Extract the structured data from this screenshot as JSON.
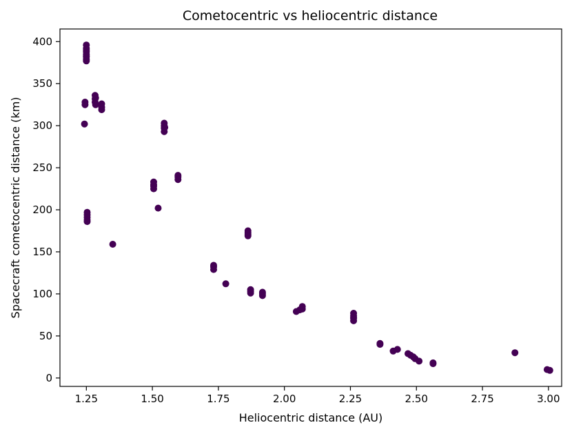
{
  "chart_data": {
    "type": "scatter",
    "title": "Cometocentric vs heliocentric distance",
    "xlabel": "Heliocentric distance (AU)",
    "ylabel": "Spacecraft cometocentric distance (km)",
    "xlim": [
      1.15,
      3.05
    ],
    "ylim": [
      -10,
      415
    ],
    "x_ticks": [
      1.25,
      1.5,
      1.75,
      2.0,
      2.25,
      2.5,
      2.75,
      3.0
    ],
    "x_tick_labels": [
      "1.25",
      "1.50",
      "1.75",
      "2.00",
      "2.25",
      "2.50",
      "2.75",
      "3.00"
    ],
    "y_ticks": [
      0,
      50,
      100,
      150,
      200,
      250,
      300,
      350,
      400
    ],
    "y_tick_labels": [
      "0",
      "50",
      "100",
      "150",
      "200",
      "250",
      "300",
      "350",
      "400"
    ],
    "grid": false,
    "marker_color": "#440154",
    "points": {
      "x": [
        1.25,
        1.25,
        1.25,
        1.25,
        1.25,
        1.25,
        1.25,
        1.25,
        1.25,
        1.245,
        1.245,
        1.243,
        1.283,
        1.283,
        1.283,
        1.285,
        1.285,
        1.308,
        1.308,
        1.308,
        1.253,
        1.253,
        1.253,
        1.253,
        1.253,
        1.35,
        1.505,
        1.505,
        1.505,
        1.505,
        1.522,
        1.545,
        1.545,
        1.545,
        1.545,
        1.547,
        1.597,
        1.597,
        1.597,
        1.732,
        1.732,
        1.732,
        1.778,
        1.862,
        1.862,
        1.862,
        1.862,
        1.872,
        1.872,
        1.872,
        1.917,
        1.917,
        1.917,
        2.045,
        2.058,
        2.068,
        2.068,
        2.262,
        2.262,
        2.262,
        2.262,
        2.262,
        2.362,
        2.362,
        2.412,
        2.428,
        2.468,
        2.478,
        2.488,
        2.495,
        2.51,
        2.563,
        2.563,
        2.873,
        2.995,
        3.005
      ],
      "y": [
        396,
        392,
        388,
        385,
        382,
        379,
        377,
        390,
        383,
        328,
        325,
        302,
        336,
        332,
        328,
        325,
        333,
        326,
        322,
        319,
        197,
        194,
        191,
        188,
        186,
        159,
        233,
        230,
        228,
        225,
        202,
        303,
        300,
        297,
        293,
        298,
        241,
        239,
        236,
        134,
        132,
        129,
        112,
        175,
        173,
        171,
        169,
        105,
        103,
        101,
        102,
        100,
        98,
        79,
        81,
        85,
        82,
        77,
        74,
        71,
        68,
        72,
        41,
        40,
        32,
        34,
        29,
        27,
        25,
        23,
        20,
        18,
        17,
        30,
        10,
        9
      ]
    }
  }
}
